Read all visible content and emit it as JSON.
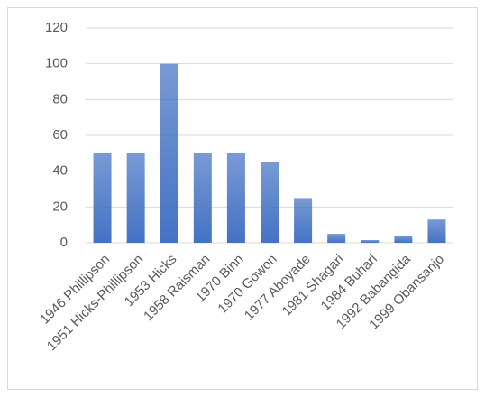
{
  "chart_data": {
    "type": "bar",
    "categories": [
      "1946 Phillipson",
      "1951 Hicks-Phillipson",
      "1953 Hicks",
      "1958 Raisman",
      "1970 Binn",
      "1970 Gowon",
      "1977 Aboyade",
      "1981 Shagari",
      "1984 Buhari",
      "1992 Babangida",
      "1999 Obansanjo"
    ],
    "values": [
      50,
      50,
      100,
      50,
      50,
      45,
      25,
      5,
      1.5,
      4,
      13
    ],
    "color": "#4472c4",
    "ylim": [
      0,
      120
    ],
    "yticks": [
      0,
      20,
      40,
      60,
      80,
      100,
      120
    ],
    "grid": true
  }
}
